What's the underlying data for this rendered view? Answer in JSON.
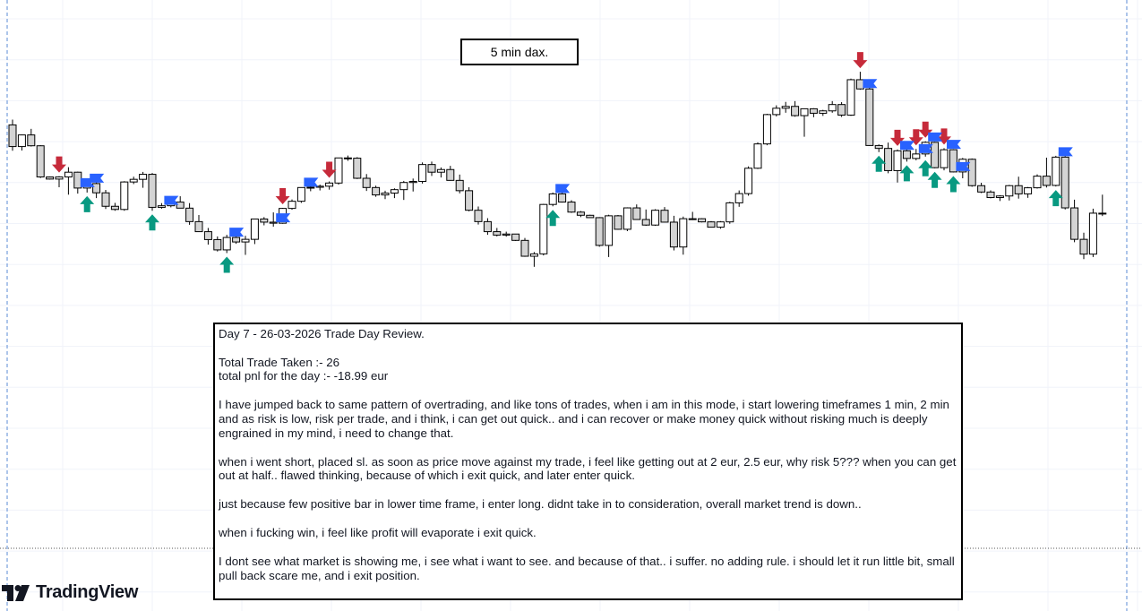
{
  "chart_title": "5 min dax.",
  "note": {
    "heading": "Day 7 - 26-03-2026 Trade Day Review.",
    "lines": [
      "Total Trade Taken :- 26",
      "total pnl for the day :- -18.99 eur"
    ],
    "paragraphs": [
      "I have jumped back to same pattern of overtrading, and like tons of trades, when i am in this mode, i start lowering timeframes 1 min, 2 min and as risk is low, risk per trade, and i think, i can get out quick.. and i can recover or make money quick without risking much is deeply engrained in my mind, i need to change that.",
      "when i went short, placed sl. as soon as price move against my trade, i feel like getting out at 2 eur, 2.5 eur, why risk 5??? when you can get out at half.. flawed thinking, because of which i exit quick, and later enter quick.",
      "just because few positive bar in lower time frame, i enter long. didnt take in to consideration, overall market trend is down..",
      "when i fucking win, i feel like profit will evaporate i exit quick.",
      "I dont see what market is showing me, i see what i want to see. and because of that.. i suffer. no adding rule. i should let it run little bit, small pull back scare me, and i exit position."
    ]
  },
  "logo": {
    "text": "TradingView",
    "icon": "tradingview-logo-icon"
  },
  "colors": {
    "bull_fill": "#ffffff",
    "bear_fill": "#d4d4d4",
    "wick": "#000000",
    "buy_arrow": "#089981",
    "sell_arrow": "#c62a3a",
    "exit_flag": "#2962ff",
    "grid": "#f0f3fa",
    "session_line": "#5b8bd6"
  },
  "chart_data": {
    "type": "candlestick",
    "title": "5 min dax.",
    "xlabel": "",
    "ylabel": "",
    "grid": true,
    "ylim": [
      0,
      100
    ],
    "ohlc": [
      [
        68.0,
        70.0,
        58.2,
        59.8
      ],
      [
        59.8,
        64.3,
        58.3,
        64.2
      ],
      [
        64.2,
        66.5,
        59.8,
        60.1
      ],
      [
        60.1,
        60.3,
        47.9,
        48.3
      ],
      [
        48.3,
        48.5,
        47.3,
        47.5
      ],
      [
        47.5,
        48.6,
        44.4,
        48.3
      ],
      [
        48.3,
        52.0,
        41.6,
        50.1
      ],
      [
        50.1,
        50.3,
        42.0,
        44.1
      ],
      [
        44.1,
        46.5,
        42.4,
        45.8
      ],
      [
        45.8,
        47.0,
        40.3,
        42.3
      ],
      [
        42.3,
        43.4,
        36.2,
        37.2
      ],
      [
        37.2,
        38.5,
        35.5,
        36.0
      ],
      [
        36.0,
        46.7,
        35.5,
        46.4
      ],
      [
        46.4,
        48.4,
        45.6,
        47.4
      ],
      [
        47.4,
        50.2,
        44.2,
        49.3
      ],
      [
        49.3,
        49.8,
        35.5,
        36.8
      ],
      [
        36.8,
        38.4,
        36.3,
        37.4
      ],
      [
        37.4,
        40.2,
        36.8,
        38.8
      ],
      [
        38.8,
        41.0,
        36.5,
        36.5
      ],
      [
        36.5,
        38.4,
        30.2,
        31.4
      ],
      [
        31.4,
        33.9,
        27.5,
        27.6
      ],
      [
        27.6,
        29.0,
        22.7,
        24.6
      ],
      [
        24.6,
        25.8,
        20.1,
        20.7
      ],
      [
        20.7,
        26.4,
        19.5,
        25.4
      ],
      [
        25.4,
        26.5,
        23.0,
        23.7
      ],
      [
        23.7,
        26.0,
        18.8,
        24.7
      ],
      [
        24.7,
        32.5,
        22.9,
        32.4
      ],
      [
        32.4,
        33.1,
        30.0,
        31.2
      ],
      [
        31.2,
        34.9,
        29.5,
        30.8
      ],
      [
        30.8,
        36.6,
        30.6,
        36.4
      ],
      [
        36.4,
        39.8,
        35.9,
        39.1
      ],
      [
        39.1,
        44.4,
        38.5,
        44.3
      ],
      [
        44.3,
        45.7,
        42.9,
        44.4
      ],
      [
        44.4,
        45.4,
        43.2,
        44.8
      ],
      [
        44.8,
        46.6,
        43.5,
        46.0
      ],
      [
        46.0,
        55.6,
        45.4,
        55.5
      ],
      [
        55.5,
        56.4,
        54.4,
        55.4
      ],
      [
        55.4,
        55.8,
        47.5,
        47.8
      ],
      [
        47.8,
        49.4,
        43.0,
        44.3
      ],
      [
        44.3,
        45.0,
        40.8,
        41.5
      ],
      [
        41.5,
        43.1,
        39.9,
        42.2
      ],
      [
        42.2,
        44.0,
        40.3,
        43.5
      ],
      [
        43.5,
        46.8,
        39.6,
        46.2
      ],
      [
        46.2,
        47.7,
        42.8,
        46.6
      ],
      [
        46.6,
        53.8,
        45.8,
        53.0
      ],
      [
        53.0,
        54.1,
        48.7,
        50.1
      ],
      [
        50.1,
        51.9,
        48.1,
        51.1
      ],
      [
        51.1,
        52.5,
        46.9,
        47.0
      ],
      [
        47.0,
        49.2,
        42.1,
        43.1
      ],
      [
        43.1,
        44.4,
        35.3,
        35.7
      ],
      [
        35.7,
        37.1,
        30.3,
        31.4
      ],
      [
        31.4,
        32.7,
        26.4,
        27.6
      ],
      [
        27.6,
        29.0,
        25.8,
        26.3
      ],
      [
        26.3,
        27.6,
        25.7,
        26.7
      ],
      [
        26.7,
        26.7,
        24.1,
        24.3
      ],
      [
        24.3,
        25.2,
        18.1,
        18.3
      ],
      [
        18.3,
        19.9,
        14.3,
        19.2
      ],
      [
        19.2,
        38.1,
        18.6,
        37.9
      ],
      [
        37.9,
        42.4,
        37.2,
        41.9
      ],
      [
        41.9,
        43.0,
        38.6,
        38.8
      ],
      [
        38.8,
        39.5,
        34.7,
        35.0
      ],
      [
        35.0,
        35.4,
        33.1,
        33.8
      ],
      [
        33.8,
        34.0,
        32.9,
        32.9
      ],
      [
        32.9,
        33.1,
        21.9,
        22.4
      ],
      [
        22.4,
        34.0,
        18.0,
        33.6
      ],
      [
        33.6,
        33.9,
        28.3,
        28.5
      ],
      [
        28.5,
        36.8,
        27.8,
        36.6
      ],
      [
        36.6,
        37.9,
        32.1,
        32.2
      ],
      [
        32.2,
        36.0,
        29.8,
        30.1
      ],
      [
        30.1,
        36.1,
        29.8,
        35.7
      ],
      [
        35.7,
        36.9,
        31.1,
        31.2
      ],
      [
        31.2,
        33.6,
        20.5,
        21.8
      ],
      [
        21.8,
        33.3,
        18.9,
        32.5
      ],
      [
        32.5,
        35.1,
        32.0,
        32.5
      ],
      [
        32.5,
        32.7,
        31.1,
        31.3
      ],
      [
        31.3,
        31.6,
        29.3,
        29.3
      ],
      [
        29.3,
        31.6,
        28.7,
        31.3
      ],
      [
        31.3,
        38.9,
        30.6,
        38.5
      ],
      [
        38.5,
        43.2,
        37.0,
        42.0
      ],
      [
        42.0,
        52.3,
        41.2,
        51.6
      ],
      [
        51.6,
        61.4,
        51.3,
        60.8
      ],
      [
        60.8,
        72.2,
        60.3,
        71.9
      ],
      [
        71.9,
        75.4,
        71.2,
        74.3
      ],
      [
        74.3,
        76.7,
        72.6,
        75.0
      ],
      [
        75.0,
        77.0,
        71.1,
        71.5
      ],
      [
        71.5,
        74.2,
        63.5,
        74.1
      ],
      [
        74.1,
        74.3,
        70.9,
        72.4
      ],
      [
        72.4,
        73.7,
        71.4,
        73.3
      ],
      [
        73.3,
        77.0,
        72.6,
        75.7
      ],
      [
        75.7,
        76.6,
        71.0,
        71.7
      ],
      [
        71.7,
        85.5,
        71.4,
        85.1
      ],
      [
        85.1,
        88.1,
        81.3,
        81.6
      ],
      [
        81.6,
        83.8,
        60.1,
        60.2
      ],
      [
        60.2,
        60.6,
        57.7,
        59.1
      ],
      [
        59.1,
        61.3,
        49.7,
        50.7
      ],
      [
        50.7,
        58.7,
        46.2,
        58.2
      ],
      [
        58.2,
        59.1,
        54.1,
        55.3
      ],
      [
        55.3,
        58.9,
        54.6,
        57.0
      ],
      [
        57.0,
        61.8,
        56.0,
        61.4
      ],
      [
        61.4,
        61.6,
        51.6,
        51.8
      ],
      [
        51.8,
        59.2,
        50.8,
        58.6
      ],
      [
        58.6,
        58.8,
        50.0,
        50.2
      ],
      [
        50.2,
        55.5,
        47.8,
        55.0
      ],
      [
        55.0,
        55.3,
        44.6,
        45.0
      ],
      [
        45.0,
        46.1,
        42.2,
        42.6
      ],
      [
        42.6,
        43.2,
        40.2,
        40.5
      ],
      [
        40.5,
        41.4,
        39.2,
        41.1
      ],
      [
        41.1,
        45.3,
        39.4,
        45.0
      ],
      [
        45.0,
        48.4,
        40.1,
        41.9
      ],
      [
        41.9,
        44.5,
        40.4,
        44.2
      ],
      [
        44.2,
        49.3,
        43.9,
        48.6
      ],
      [
        48.6,
        55.6,
        44.3,
        45.1
      ],
      [
        45.1,
        56.3,
        44.7,
        55.8
      ],
      [
        55.8,
        56.3,
        36.0,
        36.6
      ],
      [
        36.6,
        39.7,
        23.6,
        24.7
      ],
      [
        24.7,
        27.2,
        17.2,
        19.1
      ],
      [
        19.1,
        36.3,
        18.0,
        34.6
      ],
      [
        34.6,
        41.6,
        33.5,
        34.4
      ]
    ],
    "buy_markers": [
      8,
      15,
      23,
      58,
      93,
      96,
      98,
      99,
      101,
      112
    ],
    "sell_markers": [
      5,
      29,
      34,
      91,
      95,
      97,
      98,
      100
    ],
    "exit_flags": [
      7,
      8,
      16,
      23,
      28,
      31,
      58,
      91,
      95,
      97,
      98,
      100,
      101,
      112
    ]
  }
}
